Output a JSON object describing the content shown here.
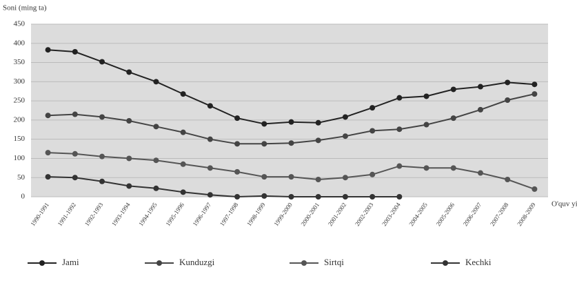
{
  "chart_data": {
    "type": "line",
    "y_label": "Soni (ming ta)",
    "x_label": "O'quv yillar",
    "categories": [
      "1990-1991",
      "1991-1992",
      "1992-1993",
      "1993-1994",
      "1994-1995",
      "1995-1996",
      "1996-1997",
      "1997-1998",
      "1998-1999",
      "1999-2000",
      "2000-2001",
      "2001-2002",
      "2002-2003",
      "2003-2004",
      "2004-2005",
      "2005-2006",
      "2006-2007",
      "2007-2008",
      "2008-2009"
    ],
    "series": [
      {
        "name": "Jami",
        "color": "#222222",
        "values": [
          383,
          378,
          352,
          325,
          300,
          268,
          237,
          205,
          190,
          195,
          193,
          208,
          232,
          258,
          262,
          280,
          287,
          298,
          293
        ]
      },
      {
        "name": "Kunduzgi",
        "color": "#444444",
        "values": [
          212,
          215,
          208,
          198,
          183,
          168,
          150,
          138,
          138,
          140,
          147,
          158,
          172,
          176,
          188,
          205,
          227,
          252,
          268
        ]
      },
      {
        "name": "Sirtqi",
        "color": "#555555",
        "values": [
          115,
          112,
          105,
          100,
          95,
          85,
          75,
          65,
          52,
          52,
          45,
          50,
          58,
          80,
          75,
          75,
          62,
          45,
          20
        ]
      },
      {
        "name": "Kechki",
        "color": "#333333",
        "values": [
          52,
          50,
          40,
          28,
          22,
          12,
          5,
          0,
          2,
          0,
          0,
          0,
          0,
          0,
          null,
          null,
          null,
          null,
          null
        ]
      }
    ],
    "ylim": [
      0,
      450
    ],
    "yticks": [
      0,
      50,
      100,
      150,
      200,
      250,
      300,
      350,
      400,
      450
    ],
    "grid": true
  }
}
